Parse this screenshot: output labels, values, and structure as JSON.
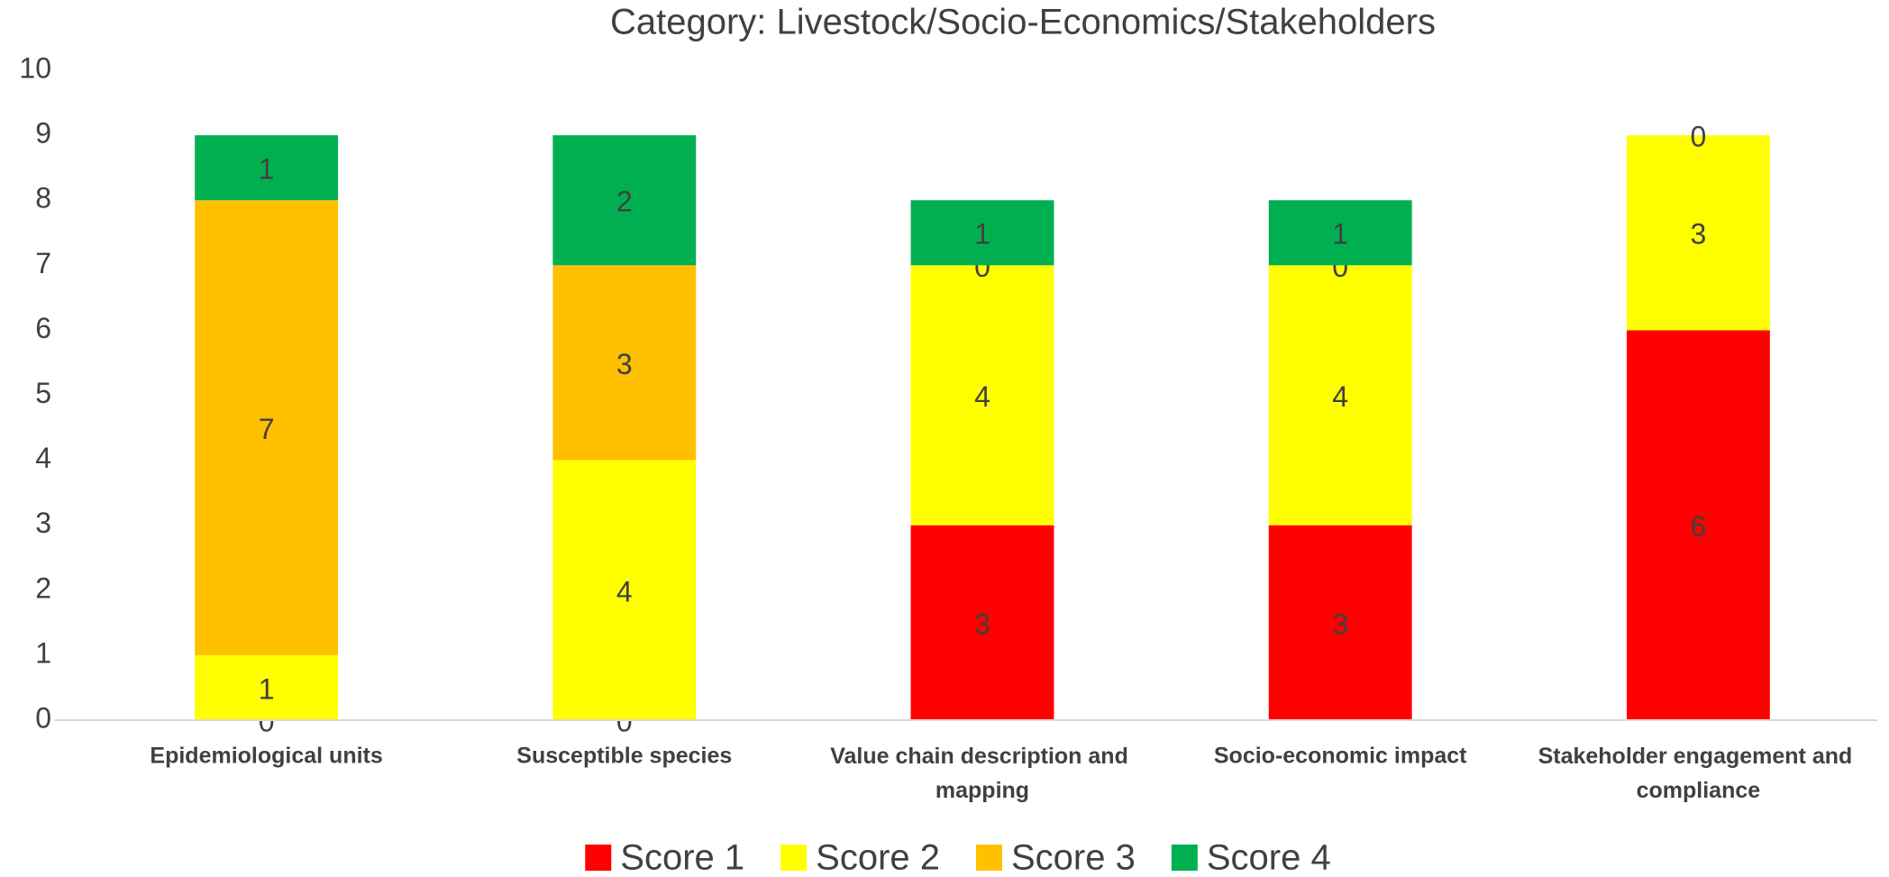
{
  "chart_data": {
    "type": "stacked_bar",
    "title": "Category:  Livestock/Socio-Economics/Stakeholders",
    "categories": [
      "Epidemiological units",
      "Susceptible species",
      "Value chain description and mapping",
      "Socio-economic impact",
      "Stakeholder engagement and compliance"
    ],
    "series": [
      {
        "name": "Score 1",
        "color": "#ff0000",
        "values": [
          0,
          0,
          3,
          3,
          6
        ]
      },
      {
        "name": "Score 2",
        "color": "#ffff00",
        "values": [
          1,
          4,
          4,
          4,
          3
        ]
      },
      {
        "name": "Score 3",
        "color": "#ffc000",
        "values": [
          7,
          3,
          0,
          0,
          0
        ]
      },
      {
        "name": "Score 4",
        "color": "#00b050",
        "values": [
          1,
          2,
          1,
          1,
          null
        ]
      }
    ],
    "ylim": [
      0,
      10
    ],
    "yticks": [
      0,
      1,
      2,
      3,
      4,
      5,
      6,
      7,
      8,
      9,
      10
    ],
    "grid": false,
    "legend": "bottom"
  }
}
